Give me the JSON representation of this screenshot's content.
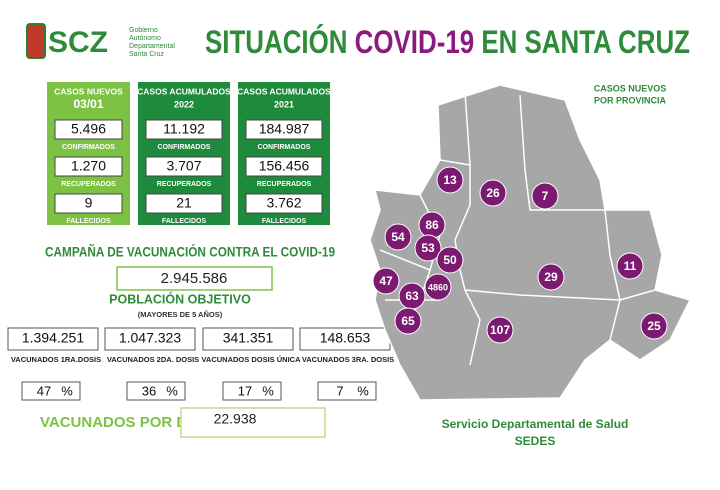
{
  "header": {
    "logo": "SCZ",
    "logo_caption": [
      "Gobierno",
      "Autónomo",
      "Departamental",
      "Santa Cruz"
    ],
    "title_parts": [
      "SITUACIÓN",
      "COVID-19",
      "EN SANTA CRUZ"
    ]
  },
  "cards": [
    {
      "title": "CASOS NUEVOS",
      "subtitle": "03/01",
      "stats": [
        {
          "value": "5.496",
          "label": "CONFIRMADOS"
        },
        {
          "value": "1.270",
          "label": "RECUPERADOS"
        },
        {
          "value": "9",
          "label": "FALLECIDOS"
        }
      ]
    },
    {
      "title": "CASOS ACUMULADOS",
      "subtitle": "2022",
      "stats": [
        {
          "value": "11.192",
          "label": "CONFIRMADOS"
        },
        {
          "value": "3.707",
          "label": "RECUPERADOS"
        },
        {
          "value": "21",
          "label": "FALLECIDOS"
        }
      ]
    },
    {
      "title": "CASOS ACUMULADOS",
      "subtitle": "2021",
      "stats": [
        {
          "value": "184.987",
          "label": "CONFIRMADOS"
        },
        {
          "value": "156.456",
          "label": "RECUPERADOS"
        },
        {
          "value": "3.762",
          "label": "FALLECIDOS"
        }
      ]
    }
  ],
  "vaccination": {
    "title": "CAMPAÑA DE VACUNACIÓN CONTRA EL COVID-19",
    "target_value": "2.945.586",
    "target_label": "POBLACIÓN OBJETIVO",
    "target_note": "(MAYORES DE 5 AÑOS)",
    "doses": [
      {
        "value": "1.394.251",
        "label": "VACUNADOS 1RA.DOSIS",
        "percent": "47",
        "percent_sign": "%"
      },
      {
        "value": "1.047.323",
        "label": "VACUNADOS 2DA. DOSIS",
        "percent": "36",
        "percent_sign": "%"
      },
      {
        "value": "341.351",
        "label": "VACUNADOS DOSIS ÚNICA",
        "percent": "17",
        "percent_sign": "%"
      },
      {
        "value": "148.653",
        "label": "VACUNADOS 3RA. DOSIS",
        "percent": "7",
        "percent_sign": "%"
      }
    ],
    "per_day_label": "VACUNADOS POR DÍA",
    "per_day_value": "22.938"
  },
  "map": {
    "title": [
      "CASOS NUEVOS",
      "POR PROVINCIA"
    ],
    "provinces": [
      "13",
      "26",
      "7",
      "86",
      "54",
      "53",
      "50",
      "47",
      "4860",
      "63",
      "29",
      "11",
      "65",
      "107",
      "25"
    ]
  },
  "footer": {
    "org": "Servicio Departamental de Salud",
    "acronym": "SEDES"
  }
}
